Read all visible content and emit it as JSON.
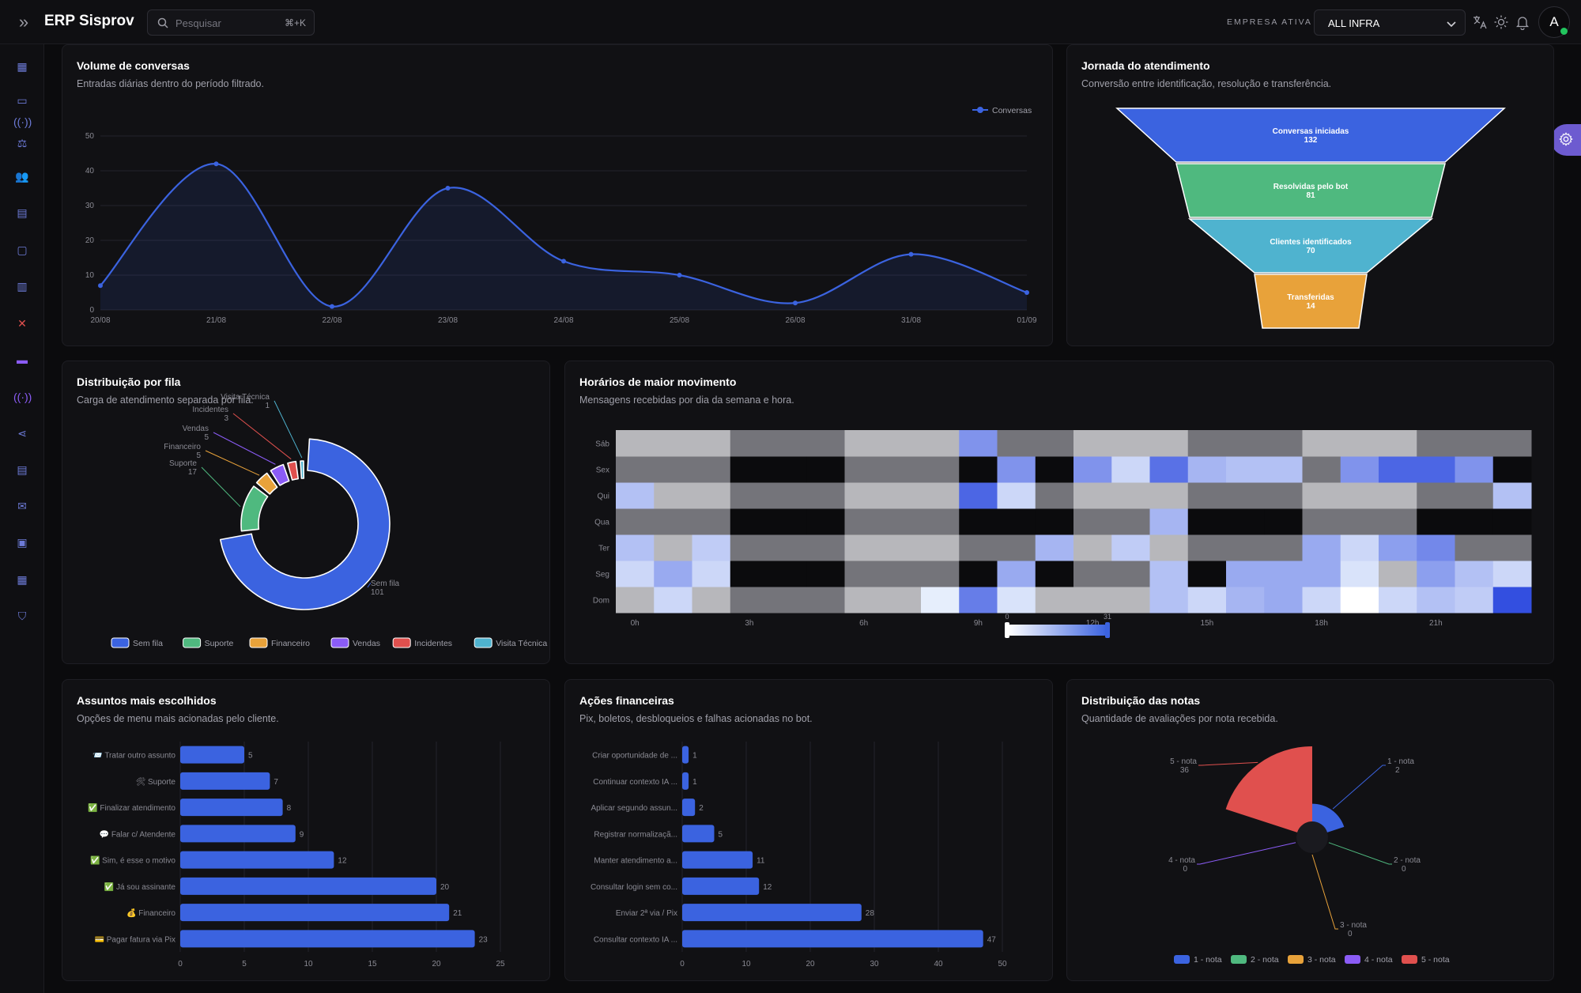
{
  "app": {
    "title": "ERP Sisprov"
  },
  "search": {
    "placeholder": "Pesquisar",
    "shortcut": "⌘+K"
  },
  "company": {
    "label": "EMPRESA ATIVA",
    "value": "ALL INFRA"
  },
  "user": {
    "initial": "A"
  },
  "icons": {
    "collapse": "chevrons-right-icon",
    "search": "search-icon",
    "translate": "translate-icon",
    "theme": "sun-icon",
    "bell": "bell-icon",
    "gear": "gear-icon",
    "sidebar": [
      "dashboard-icon",
      "id-card-icon",
      "broadcast-icon",
      "scale-icon",
      "users-icon",
      "document-icon",
      "bag-icon",
      "bar-chart-icon",
      "tools-icon",
      "robot-icon",
      "radio-icon",
      "share-icon",
      "archive-icon",
      "mailbox-icon",
      "presentation-icon",
      "spreadsheet-icon",
      "shield-icon"
    ]
  },
  "colors": {
    "accent": "#3b63e0",
    "green": "#4fb97f",
    "orange": "#e8a23a",
    "purple": "#8b5cf6",
    "red": "#e0504e",
    "cyan": "#4fb3cf"
  },
  "cards": {
    "volume": {
      "title": "Volume de conversas",
      "subtitle": "Entradas diárias dentro do período filtrado."
    },
    "jornada": {
      "title": "Jornada do atendimento",
      "subtitle": "Conversão entre identificação, resolução e transferência."
    },
    "distribuicao": {
      "title": "Distribuição por fila",
      "subtitle": "Carga de atendimento separada por fila."
    },
    "horarios": {
      "title": "Horários de maior movimento",
      "subtitle": "Mensagens recebidas por dia da semana e hora."
    },
    "assuntos": {
      "title": "Assuntos mais escolhidos",
      "subtitle": "Opções de menu mais acionadas pelo cliente."
    },
    "acoes": {
      "title": "Ações financeiras",
      "subtitle": "Pix, boletos, desbloqueios e falhas acionadas no bot."
    },
    "notas": {
      "title": "Distribuição das notas",
      "subtitle": "Quantidade de avaliações por nota recebida."
    }
  },
  "chart_data": [
    {
      "id": "volume",
      "type": "area",
      "x": [
        "20/08",
        "21/08",
        "22/08",
        "23/08",
        "24/08",
        "25/08",
        "26/08",
        "31/08",
        "01/09"
      ],
      "series": [
        {
          "name": "Conversas",
          "values": [
            7,
            42,
            1,
            35,
            14,
            10,
            2,
            16,
            5
          ]
        }
      ],
      "ylim": [
        0,
        50
      ],
      "yticks": [
        0,
        10,
        20,
        30,
        40,
        50
      ],
      "legend": "top-right",
      "grid": true
    },
    {
      "id": "jornada",
      "type": "funnel",
      "stages": [
        {
          "label": "Conversas iniciadas",
          "value": 132
        },
        {
          "label": "Resolvidas pelo bot",
          "value": 81
        },
        {
          "label": "Clientes identificados",
          "value": 70
        },
        {
          "label": "Transferidas",
          "value": 14
        }
      ]
    },
    {
      "id": "distribuicao",
      "type": "pie",
      "slices": [
        {
          "label": "Sem fila",
          "value": 101
        },
        {
          "label": "Suporte",
          "value": 17
        },
        {
          "label": "Financeiro",
          "value": 5
        },
        {
          "label": "Vendas",
          "value": 5
        },
        {
          "label": "Incidentes",
          "value": 3
        },
        {
          "label": "Visita Técnica",
          "value": 1
        }
      ],
      "legend": "bottom"
    },
    {
      "id": "horarios",
      "type": "heatmap",
      "rows": [
        "Dom",
        "Seg",
        "Ter",
        "Qua",
        "Qui",
        "Sex",
        "Sáb"
      ],
      "hours": 24,
      "xticks": [
        "0h",
        "3h",
        "6h",
        "9h",
        "12h",
        "15h",
        "18h",
        "21h"
      ],
      "range": [
        0,
        31
      ],
      "values": [
        [
          10,
          18,
          10,
          6,
          6,
          6,
          10,
          10,
          16,
          26,
          17,
          8,
          10,
          10,
          20,
          18,
          21,
          22,
          18,
          12,
          18,
          20,
          19,
          30
        ],
        [
          18,
          22,
          18,
          0,
          0,
          0,
          6,
          6,
          6,
          0,
          22,
          0,
          6,
          6,
          20,
          0,
          22,
          22,
          22,
          17,
          10,
          23,
          20,
          18
        ],
        [
          20,
          10,
          19,
          6,
          6,
          6,
          10,
          10,
          10,
          6,
          6,
          21,
          10,
          19,
          10,
          6,
          6,
          6,
          22,
          18,
          23,
          25,
          6,
          6
        ],
        [
          6,
          6,
          6,
          0,
          0,
          0,
          6,
          6,
          6,
          0,
          0,
          0,
          6,
          6,
          21,
          0,
          0,
          0,
          6,
          6,
          6,
          0,
          0,
          0
        ],
        [
          20,
          10,
          10,
          6,
          6,
          6,
          10,
          10,
          10,
          28,
          18,
          6,
          10,
          10,
          10,
          6,
          6,
          6,
          10,
          10,
          10,
          6,
          6,
          20
        ],
        [
          6,
          6,
          6,
          0,
          0,
          0,
          6,
          6,
          6,
          0,
          24,
          0,
          24,
          18,
          27,
          21,
          20,
          20,
          6,
          24,
          28,
          28,
          24,
          0
        ],
        [
          10,
          10,
          10,
          6,
          6,
          6,
          10,
          10,
          10,
          24,
          6,
          6,
          10,
          10,
          10,
          6,
          6,
          6,
          10,
          10,
          10,
          6,
          6,
          6
        ]
      ]
    },
    {
      "id": "assuntos",
      "type": "bar",
      "orientation": "horizontal",
      "categories": [
        "📨 Tratar outro assunto",
        "🛠 Suporte",
        "✅ Finalizar atendimento",
        "💬 Falar c/ Atendente",
        "✅ Sim, é esse o motivo",
        "✅ Já sou assinante",
        "💰 Financeiro",
        "💳 Pagar fatura via Pix"
      ],
      "values": [
        5,
        7,
        8,
        9,
        12,
        20,
        21,
        23
      ],
      "xlim": [
        0,
        25
      ],
      "xticks": [
        0,
        5,
        10,
        15,
        20,
        25
      ]
    },
    {
      "id": "acoes",
      "type": "bar",
      "orientation": "horizontal",
      "categories": [
        "Criar oportunidade de ...",
        "Continuar contexto IA ...",
        "Aplicar segundo assun...",
        "Registrar normalizaçã...",
        "Manter atendimento a...",
        "Consultar login sem co...",
        "Enviar 2ª via / Pix",
        "Consultar contexto IA ..."
      ],
      "values": [
        1,
        1,
        2,
        5,
        11,
        12,
        28,
        47
      ],
      "xlim": [
        0,
        50
      ],
      "xticks": [
        0,
        10,
        20,
        30,
        40,
        50
      ]
    },
    {
      "id": "notas",
      "type": "pie",
      "variant": "rose",
      "slices": [
        {
          "label": "1 - nota",
          "value": 2
        },
        {
          "label": "2 - nota",
          "value": 0
        },
        {
          "label": "3 - nota",
          "value": 0
        },
        {
          "label": "4 - nota",
          "value": 0
        },
        {
          "label": "5 - nota",
          "value": 36
        }
      ],
      "legend": "bottom"
    }
  ]
}
